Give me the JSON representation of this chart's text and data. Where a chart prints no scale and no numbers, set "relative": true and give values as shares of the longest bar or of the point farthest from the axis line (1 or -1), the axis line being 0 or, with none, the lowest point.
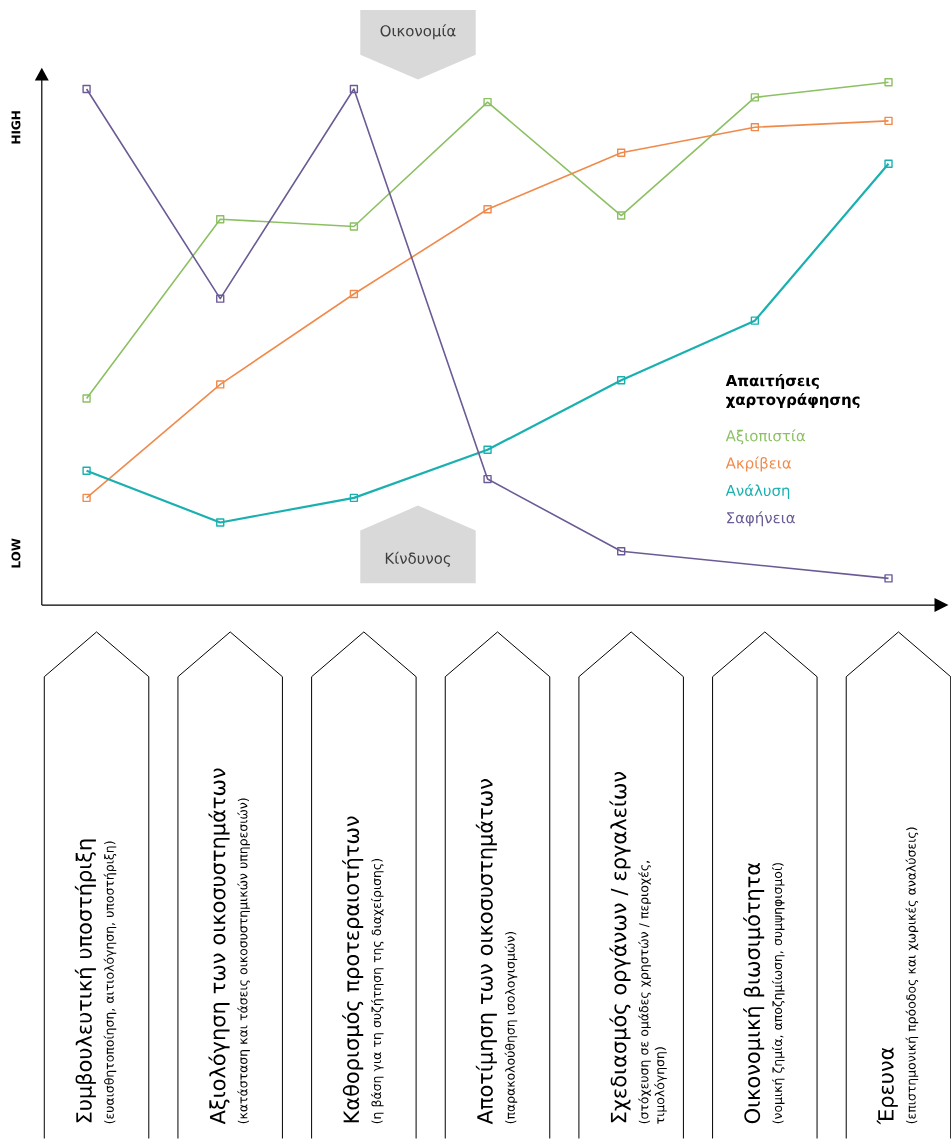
{
  "chart_data": {
    "type": "line",
    "relative": true,
    "marker": "square",
    "legend": "right",
    "legend_title": "Απαιτήσεις χαρτογράφησης",
    "categories": [
      "Συμβουλευτική υποστήριξη",
      "Αξιολόγηση των οικοσυστημάτων",
      "Καθορισμός προτεραιοτήτων",
      "Αποτίμηση των οικοσυστημάτων",
      "Σχεδιασμός οργάνων / εργαλείων",
      "Οικονομική βιωσιμότητα",
      "Έρευνα"
    ],
    "series": [
      {
        "name": "Αξιοπιστία",
        "color": "#8cc063",
        "values": [
          0.395,
          0.738,
          0.724,
          0.962,
          0.745,
          0.971,
          1.0
        ]
      },
      {
        "name": "Ακρίβεια",
        "color": "#f08a4b",
        "values": [
          0.205,
          0.422,
          0.595,
          0.757,
          0.865,
          0.914,
          0.926
        ]
      },
      {
        "name": "Ανάλυση",
        "color": "#1ab0b0",
        "values": [
          0.257,
          0.158,
          0.205,
          0.297,
          0.43,
          0.544,
          0.844
        ]
      },
      {
        "name": "Σαφήνεια",
        "color": "#6b5b95",
        "values": [
          0.987,
          0.586,
          0.987,
          0.241,
          0.103,
          null,
          0.051
        ]
      }
    ],
    "annotations": [
      "(ευαισθητοποίηση, αιτιολόγηση, υποστήριξη)",
      "(κατάσταση και τάσεις οικοσυστημικών υπηρεσιών)",
      "(η βάση για τη συζήτηση της διαχείρισης)",
      "(παρακολούθηση ισολογισμών)",
      "(στόχευση σε ομάδες χρηστών / περιοχές, τιμολόγηση)",
      "(νομική ζημία, αποζημίωση, συμψηφισμοί)",
      "(επιστημονική πρόοδος και χωρικές αναλύσεις)",
      "HIGH",
      "LOW",
      "Οικονομία",
      "Κίνδυνος"
    ]
  }
}
